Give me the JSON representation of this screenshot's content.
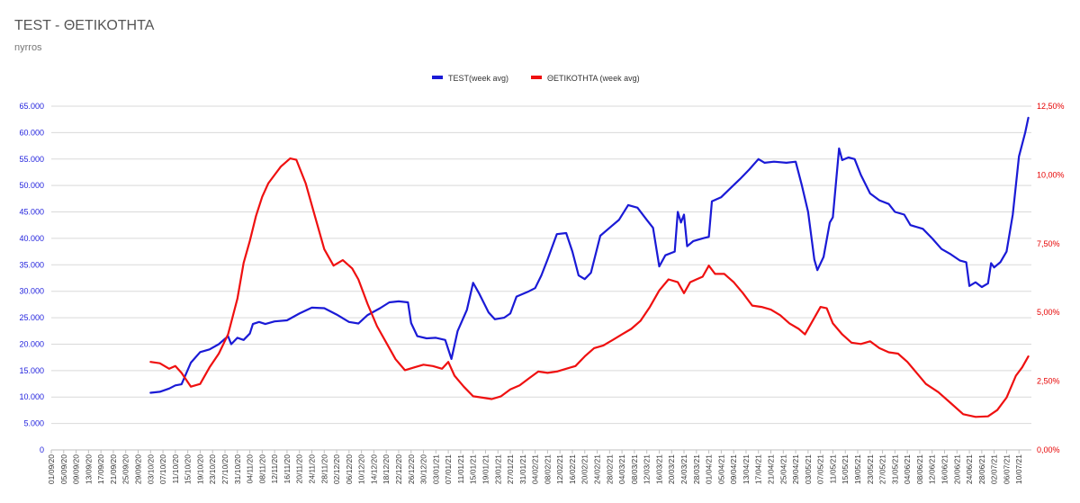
{
  "title": "TEST - ΘΕΤΙΚΟΤΗΤΑ",
  "subtitle": "nyrros",
  "colors": {
    "test": "#1a1ad6",
    "positivity": "#ef1010",
    "grid": "#d9d9d9",
    "axis": "#bfbfbf"
  },
  "chart_data": {
    "type": "line",
    "title": "TEST - ΘΕΤΙΚΟΤΗΤΑ",
    "subtitle": "nyrros",
    "legend_position": "top-center",
    "grid": true,
    "x_start": "2020-09-01",
    "x_end": "2021-07-14",
    "x_tick_labels": [
      "01/09/20",
      "05/09/20",
      "09/09/20",
      "13/09/20",
      "17/09/20",
      "21/09/20",
      "25/09/20",
      "29/09/20",
      "03/10/20",
      "07/10/20",
      "11/10/20",
      "15/10/20",
      "19/10/20",
      "23/10/20",
      "27/10/20",
      "31/10/20",
      "04/11/20",
      "08/11/20",
      "12/11/20",
      "16/11/20",
      "20/11/20",
      "24/11/20",
      "28/11/20",
      "02/12/20",
      "06/12/20",
      "10/12/20",
      "14/12/20",
      "18/12/20",
      "22/12/20",
      "26/12/20",
      "30/12/20",
      "03/01/21",
      "07/01/21",
      "11/01/21",
      "15/01/21",
      "19/01/21",
      "23/01/21",
      "27/01/21",
      "31/01/21",
      "04/02/21",
      "08/02/21",
      "12/02/21",
      "16/02/21",
      "20/02/21",
      "24/02/21",
      "28/02/21",
      "04/03/21",
      "08/03/21",
      "12/03/21",
      "16/03/21",
      "20/03/21",
      "24/03/21",
      "28/03/21",
      "01/04/21",
      "05/04/21",
      "09/04/21",
      "13/04/21",
      "17/04/21",
      "21/04/21",
      "25/04/21",
      "29/04/21",
      "03/05/21",
      "07/05/21",
      "11/05/21",
      "15/05/21",
      "19/05/21",
      "23/05/21",
      "27/05/21",
      "31/05/21",
      "04/06/21",
      "08/06/21",
      "12/06/21",
      "16/06/21",
      "20/06/21",
      "24/06/21",
      "28/06/21",
      "02/07/21",
      "06/07/21",
      "10/07/21"
    ],
    "y_left": {
      "min": 0,
      "max": 65000,
      "step": 5000,
      "tick_labels": [
        "0",
        "5.000",
        "10.000",
        "15.000",
        "20.000",
        "25.000",
        "30.000",
        "35.000",
        "40.000",
        "45.000",
        "50.000",
        "55.000",
        "60.000",
        "65.000"
      ]
    },
    "y_right": {
      "min": 0,
      "max": 12.5,
      "step": 2.5,
      "tick_labels": [
        "0,00%",
        "2,50%",
        "5,00%",
        "7,50%",
        "10,00%",
        "12,50%"
      ]
    },
    "series": [
      {
        "name": "TEST(week avg)",
        "axis": "left",
        "color": "#1a1ad6",
        "points": [
          [
            "2020-10-03",
            10800
          ],
          [
            "2020-10-06",
            11000
          ],
          [
            "2020-10-09",
            11600
          ],
          [
            "2020-10-11",
            12200
          ],
          [
            "2020-10-13",
            12400
          ],
          [
            "2020-10-16",
            16500
          ],
          [
            "2020-10-19",
            18500
          ],
          [
            "2020-10-22",
            19000
          ],
          [
            "2020-10-25",
            20000
          ],
          [
            "2020-10-28",
            21500
          ],
          [
            "2020-10-29",
            20000
          ],
          [
            "2020-10-31",
            21200
          ],
          [
            "2020-11-02",
            20800
          ],
          [
            "2020-11-04",
            22000
          ],
          [
            "2020-11-05",
            23800
          ],
          [
            "2020-11-07",
            24200
          ],
          [
            "2020-11-09",
            23800
          ],
          [
            "2020-11-12",
            24300
          ],
          [
            "2020-11-16",
            24500
          ],
          [
            "2020-11-20",
            25800
          ],
          [
            "2020-11-24",
            26900
          ],
          [
            "2020-11-28",
            26800
          ],
          [
            "2020-12-02",
            25600
          ],
          [
            "2020-12-06",
            24200
          ],
          [
            "2020-12-09",
            23900
          ],
          [
            "2020-12-12",
            25500
          ],
          [
            "2020-12-16",
            26800
          ],
          [
            "2020-12-19",
            27900
          ],
          [
            "2020-12-22",
            28100
          ],
          [
            "2020-12-25",
            27900
          ],
          [
            "2020-12-26",
            24000
          ],
          [
            "2020-12-28",
            21500
          ],
          [
            "2020-12-31",
            21100
          ],
          [
            "2021-01-03",
            21200
          ],
          [
            "2021-01-06",
            20800
          ],
          [
            "2021-01-08",
            17200
          ],
          [
            "2021-01-10",
            22500
          ],
          [
            "2021-01-13",
            26500
          ],
          [
            "2021-01-15",
            31600
          ],
          [
            "2021-01-17",
            29500
          ],
          [
            "2021-01-20",
            26000
          ],
          [
            "2021-01-22",
            24700
          ],
          [
            "2021-01-25",
            25000
          ],
          [
            "2021-01-27",
            25800
          ],
          [
            "2021-01-29",
            29000
          ],
          [
            "2021-02-02",
            30000
          ],
          [
            "2021-02-04",
            30600
          ],
          [
            "2021-02-06",
            33000
          ],
          [
            "2021-02-08",
            36000
          ],
          [
            "2021-02-11",
            40800
          ],
          [
            "2021-02-14",
            41000
          ],
          [
            "2021-02-16",
            37500
          ],
          [
            "2021-02-18",
            33000
          ],
          [
            "2021-02-20",
            32300
          ],
          [
            "2021-02-22",
            33500
          ],
          [
            "2021-02-25",
            40500
          ],
          [
            "2021-02-28",
            42000
          ],
          [
            "2021-03-03",
            43500
          ],
          [
            "2021-03-06",
            46300
          ],
          [
            "2021-03-09",
            45800
          ],
          [
            "2021-03-12",
            43500
          ],
          [
            "2021-03-14",
            42000
          ],
          [
            "2021-03-16",
            34700
          ],
          [
            "2021-03-18",
            36800
          ],
          [
            "2021-03-21",
            37500
          ],
          [
            "2021-03-22",
            45000
          ],
          [
            "2021-03-23",
            43000
          ],
          [
            "2021-03-24",
            44500
          ],
          [
            "2021-03-25",
            38500
          ],
          [
            "2021-03-27",
            39500
          ],
          [
            "2021-03-30",
            40000
          ],
          [
            "2021-04-01",
            40300
          ],
          [
            "2021-04-02",
            47000
          ],
          [
            "2021-04-05",
            47800
          ],
          [
            "2021-04-08",
            49500
          ],
          [
            "2021-04-11",
            51200
          ],
          [
            "2021-04-14",
            53000
          ],
          [
            "2021-04-17",
            55000
          ],
          [
            "2021-04-19",
            54300
          ],
          [
            "2021-04-22",
            54500
          ],
          [
            "2021-04-26",
            54300
          ],
          [
            "2021-04-29",
            54500
          ],
          [
            "2021-05-01",
            50000
          ],
          [
            "2021-05-03",
            45000
          ],
          [
            "2021-05-05",
            36000
          ],
          [
            "2021-05-06",
            34000
          ],
          [
            "2021-05-08",
            36500
          ],
          [
            "2021-05-10",
            43000
          ],
          [
            "2021-05-11",
            44000
          ],
          [
            "2021-05-13",
            57000
          ],
          [
            "2021-05-14",
            54800
          ],
          [
            "2021-05-16",
            55300
          ],
          [
            "2021-05-18",
            55000
          ],
          [
            "2021-05-20",
            52000
          ],
          [
            "2021-05-23",
            48500
          ],
          [
            "2021-05-26",
            47200
          ],
          [
            "2021-05-29",
            46500
          ],
          [
            "2021-05-31",
            45000
          ],
          [
            "2021-06-03",
            44500
          ],
          [
            "2021-06-05",
            42500
          ],
          [
            "2021-06-09",
            41800
          ],
          [
            "2021-06-12",
            40000
          ],
          [
            "2021-06-15",
            38000
          ],
          [
            "2021-06-18",
            37000
          ],
          [
            "2021-06-21",
            35800
          ],
          [
            "2021-06-23",
            35500
          ],
          [
            "2021-06-24",
            31000
          ],
          [
            "2021-06-26",
            31700
          ],
          [
            "2021-06-28",
            30800
          ],
          [
            "2021-06-30",
            31500
          ],
          [
            "2021-07-01",
            35300
          ],
          [
            "2021-07-02",
            34500
          ],
          [
            "2021-07-04",
            35500
          ],
          [
            "2021-07-06",
            37500
          ],
          [
            "2021-07-08",
            44500
          ],
          [
            "2021-07-10",
            55500
          ],
          [
            "2021-07-12",
            60000
          ],
          [
            "2021-07-13",
            62800
          ]
        ]
      },
      {
        "name": "ΘΕΤΙΚΟΤΗΤΑ (week avg)",
        "axis": "right",
        "color": "#ef1010",
        "points": [
          [
            "2020-10-03",
            3.2
          ],
          [
            "2020-10-06",
            3.15
          ],
          [
            "2020-10-09",
            2.95
          ],
          [
            "2020-10-11",
            3.05
          ],
          [
            "2020-10-13",
            2.8
          ],
          [
            "2020-10-16",
            2.3
          ],
          [
            "2020-10-19",
            2.4
          ],
          [
            "2020-10-22",
            3.0
          ],
          [
            "2020-10-25",
            3.5
          ],
          [
            "2020-10-28",
            4.2
          ],
          [
            "2020-10-31",
            5.5
          ],
          [
            "2020-11-02",
            6.8
          ],
          [
            "2020-11-04",
            7.6
          ],
          [
            "2020-11-06",
            8.5
          ],
          [
            "2020-11-08",
            9.2
          ],
          [
            "2020-11-10",
            9.7
          ],
          [
            "2020-11-12",
            10.0
          ],
          [
            "2020-11-14",
            10.3
          ],
          [
            "2020-11-17",
            10.6
          ],
          [
            "2020-11-19",
            10.55
          ],
          [
            "2020-11-22",
            9.7
          ],
          [
            "2020-11-25",
            8.5
          ],
          [
            "2020-11-28",
            7.3
          ],
          [
            "2020-12-01",
            6.7
          ],
          [
            "2020-12-04",
            6.9
          ],
          [
            "2020-12-07",
            6.6
          ],
          [
            "2020-12-09",
            6.2
          ],
          [
            "2020-12-12",
            5.3
          ],
          [
            "2020-12-15",
            4.5
          ],
          [
            "2020-12-18",
            3.9
          ],
          [
            "2020-12-21",
            3.3
          ],
          [
            "2020-12-24",
            2.9
          ],
          [
            "2020-12-27",
            3.0
          ],
          [
            "2020-12-30",
            3.1
          ],
          [
            "2021-01-02",
            3.05
          ],
          [
            "2021-01-05",
            2.95
          ],
          [
            "2021-01-07",
            3.2
          ],
          [
            "2021-01-09",
            2.7
          ],
          [
            "2021-01-12",
            2.3
          ],
          [
            "2021-01-15",
            1.95
          ],
          [
            "2021-01-18",
            1.9
          ],
          [
            "2021-01-21",
            1.85
          ],
          [
            "2021-01-24",
            1.95
          ],
          [
            "2021-01-27",
            2.2
          ],
          [
            "2021-01-30",
            2.35
          ],
          [
            "2021-02-02",
            2.6
          ],
          [
            "2021-02-05",
            2.85
          ],
          [
            "2021-02-08",
            2.8
          ],
          [
            "2021-02-11",
            2.85
          ],
          [
            "2021-02-14",
            2.95
          ],
          [
            "2021-02-17",
            3.05
          ],
          [
            "2021-02-20",
            3.4
          ],
          [
            "2021-02-23",
            3.7
          ],
          [
            "2021-02-26",
            3.8
          ],
          [
            "2021-03-01",
            4.0
          ],
          [
            "2021-03-04",
            4.2
          ],
          [
            "2021-03-07",
            4.4
          ],
          [
            "2021-03-10",
            4.7
          ],
          [
            "2021-03-13",
            5.2
          ],
          [
            "2021-03-16",
            5.8
          ],
          [
            "2021-03-19",
            6.2
          ],
          [
            "2021-03-22",
            6.1
          ],
          [
            "2021-03-24",
            5.7
          ],
          [
            "2021-03-26",
            6.1
          ],
          [
            "2021-03-28",
            6.2
          ],
          [
            "2021-03-30",
            6.3
          ],
          [
            "2021-04-01",
            6.7
          ],
          [
            "2021-04-03",
            6.4
          ],
          [
            "2021-04-06",
            6.4
          ],
          [
            "2021-04-09",
            6.1
          ],
          [
            "2021-04-12",
            5.7
          ],
          [
            "2021-04-15",
            5.25
          ],
          [
            "2021-04-18",
            5.2
          ],
          [
            "2021-04-21",
            5.1
          ],
          [
            "2021-04-24",
            4.9
          ],
          [
            "2021-04-27",
            4.6
          ],
          [
            "2021-04-30",
            4.4
          ],
          [
            "2021-05-02",
            4.2
          ],
          [
            "2021-05-04",
            4.6
          ],
          [
            "2021-05-07",
            5.2
          ],
          [
            "2021-05-09",
            5.15
          ],
          [
            "2021-05-11",
            4.6
          ],
          [
            "2021-05-14",
            4.2
          ],
          [
            "2021-05-17",
            3.9
          ],
          [
            "2021-05-20",
            3.85
          ],
          [
            "2021-05-23",
            3.95
          ],
          [
            "2021-05-26",
            3.7
          ],
          [
            "2021-05-29",
            3.55
          ],
          [
            "2021-06-01",
            3.5
          ],
          [
            "2021-06-04",
            3.2
          ],
          [
            "2021-06-07",
            2.8
          ],
          [
            "2021-06-10",
            2.4
          ],
          [
            "2021-06-14",
            2.1
          ],
          [
            "2021-06-18",
            1.7
          ],
          [
            "2021-06-22",
            1.3
          ],
          [
            "2021-06-26",
            1.2
          ],
          [
            "2021-06-30",
            1.22
          ],
          [
            "2021-07-03",
            1.45
          ],
          [
            "2021-07-06",
            1.9
          ],
          [
            "2021-07-09",
            2.7
          ],
          [
            "2021-07-11",
            3.0
          ],
          [
            "2021-07-13",
            3.4
          ]
        ]
      }
    ]
  }
}
